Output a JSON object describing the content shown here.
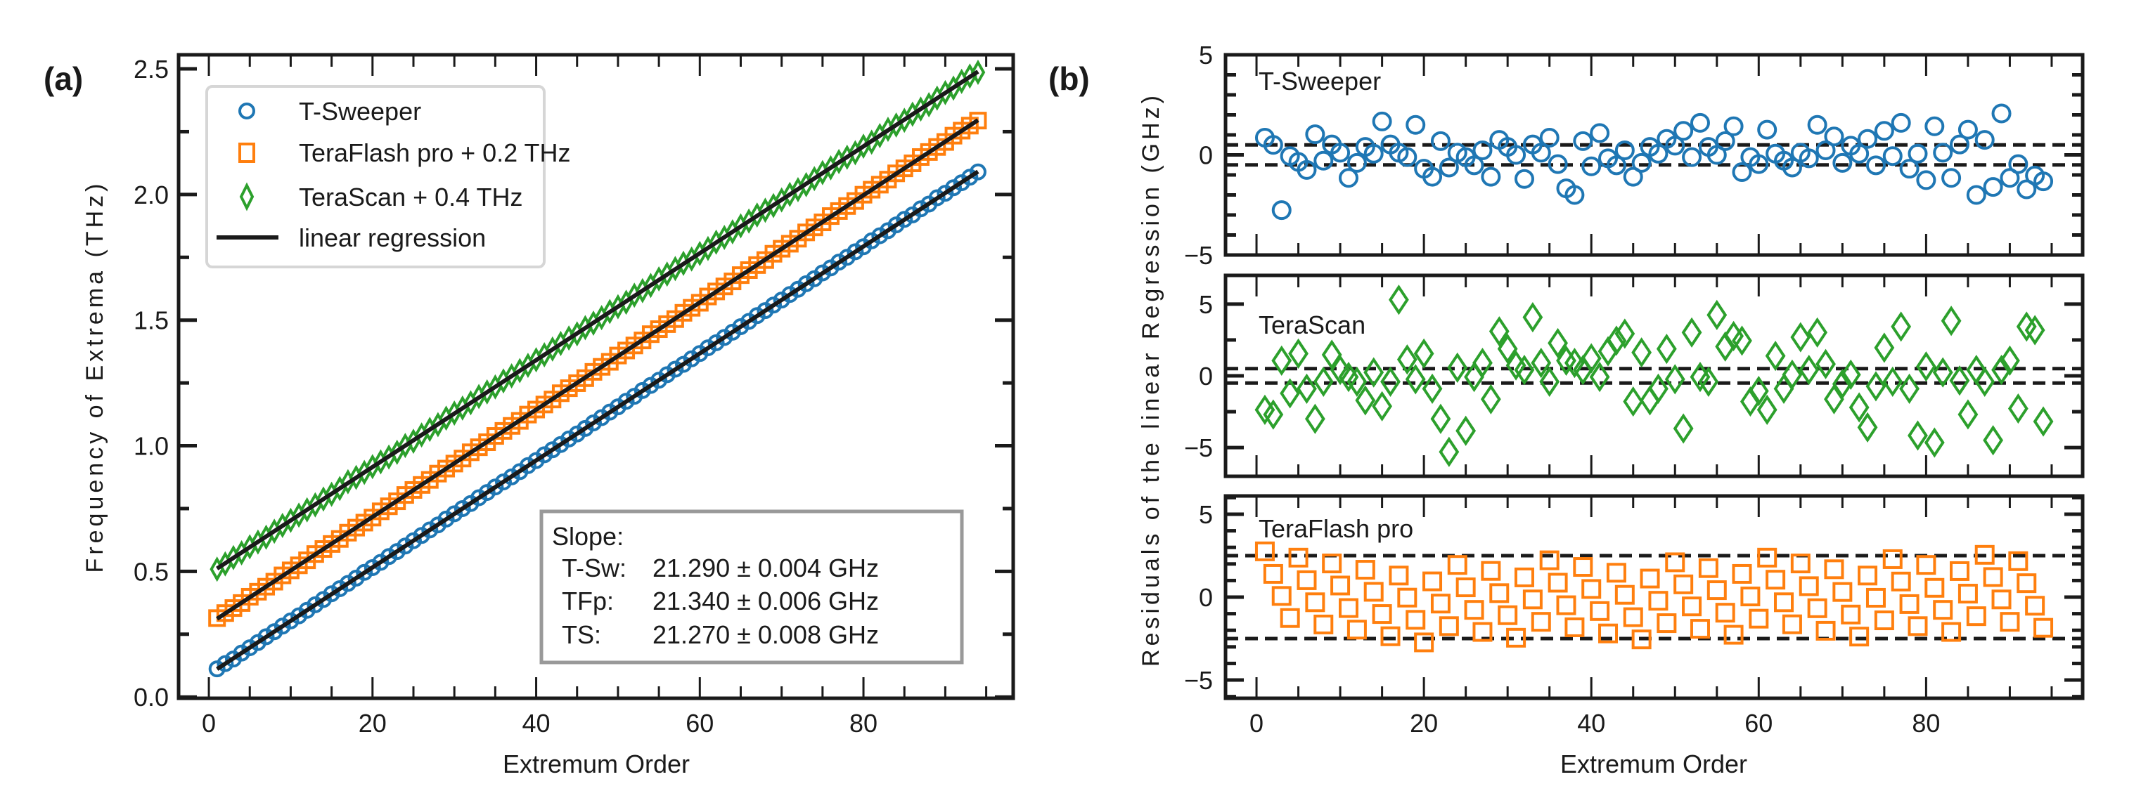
{
  "chart_data": [
    {
      "panel": "a",
      "type": "scatter",
      "panel_label": "(a)",
      "xlabel": "Extremum Order",
      "ylabel": "Frequency of Extrema (THz)",
      "xlim": [
        -3.7,
        98.3
      ],
      "ylim": [
        -0.005,
        2.556
      ],
      "xticks": [
        0,
        20,
        40,
        60,
        80
      ],
      "xtick_labels": [
        "0",
        "20",
        "40",
        "60",
        "80"
      ],
      "yticks": [
        0.0,
        0.5,
        1.0,
        1.5,
        2.0,
        2.5
      ],
      "ytick_labels": [
        "0.0",
        "0.5",
        "1.0",
        "1.5",
        "2.0",
        "2.5"
      ],
      "grid": false,
      "legend_position": "top-left",
      "legend": [
        {
          "label": "T-Sweeper",
          "marker": "circle",
          "color": "#1f77b4"
        },
        {
          "label": "TeraFlash pro + 0.2 THz",
          "marker": "square",
          "color": "#ff7f0e"
        },
        {
          "label": "TeraScan + 0.4 THz",
          "marker": "diamond",
          "color": "#2ca02c"
        },
        {
          "label": "linear regression",
          "marker": "line",
          "color": "#1a1a1a"
        }
      ],
      "series": [
        {
          "name": "T-Sweeper",
          "residual_source": "T-Sweeper",
          "color": "#1f77b4",
          "marker": "circle",
          "slope_ghz": 21.29,
          "intercept_thz": 0.09,
          "offset_thz": 0.0
        },
        {
          "name": "TeraFlash pro",
          "residual_source": "TeraFlash pro",
          "color": "#ff7f0e",
          "marker": "square",
          "slope_ghz": 21.34,
          "intercept_thz": 0.09,
          "offset_thz": 0.2
        },
        {
          "name": "TeraScan",
          "residual_source": "TeraScan",
          "color": "#2ca02c",
          "marker": "diamond",
          "slope_ghz": 21.27,
          "intercept_thz": 0.09,
          "offset_thz": 0.4
        }
      ],
      "annotation": {
        "title": "Slope:",
        "position": "bottom-right",
        "rows": [
          {
            "label": "T-Sw:",
            "value": "21.290 ± 0.004 GHz"
          },
          {
            "label": "TFp:",
            "value": "21.340 ± 0.006 GHz"
          },
          {
            "label": "TS:",
            "value": "21.270 ± 0.008 GHz"
          }
        ]
      }
    },
    {
      "panel": "b",
      "type": "scatter",
      "panel_label": "(b)",
      "xlabel": "Extremum Order",
      "ylabel": "Residuals of the linear Regression (GHz)",
      "x_start": 1,
      "x_end": 94,
      "xlim": [
        -3.7,
        98.7
      ],
      "xticks": [
        0,
        20,
        40,
        60,
        80
      ],
      "xtick_labels": [
        "0",
        "20",
        "40",
        "60",
        "80"
      ],
      "subplots": [
        {
          "title": "T-Sweeper",
          "color": "#1f77b4",
          "marker": "circle",
          "ylim": [
            -5,
            5
          ],
          "yticks": [
            -5,
            0,
            5
          ],
          "ytick_labels": [
            "−5",
            "0",
            "5"
          ],
          "yminor_step": 1,
          "dashed_lines": [
            0.5,
            -0.5
          ],
          "residuals": [
            0.86,
            0.5,
            -2.76,
            -0.06,
            -0.35,
            -0.75,
            1.03,
            -0.29,
            0.52,
            0.11,
            -1.15,
            -0.4,
            0.4,
            0.06,
            1.67,
            0.52,
            0.11,
            -0.11,
            1.5,
            -0.69,
            -1.09,
            0.69,
            -0.63,
            0.11,
            -0.11,
            -0.52,
            0.23,
            -1.09,
            0.75,
            0.4,
            0.0,
            -1.2,
            0.52,
            0.11,
            0.86,
            -0.46,
            -1.67,
            -2.0,
            0.69,
            -0.57,
            1.09,
            -0.17,
            -0.52,
            0.23,
            -1.09,
            -0.4,
            0.4,
            0.06,
            0.8,
            0.46,
            1.2,
            -0.11,
            1.6,
            0.4,
            0.0,
            0.69,
            1.43,
            -0.86,
            -0.11,
            -0.46,
            1.26,
            0.06,
            -0.29,
            -0.63,
            0.11,
            -0.17,
            1.5,
            0.23,
            0.92,
            -0.4,
            0.46,
            0.06,
            0.8,
            -0.52,
            1.2,
            -0.06,
            1.6,
            -0.69,
            0.06,
            -1.26,
            1.43,
            0.11,
            -1.15,
            0.52,
            1.26,
            -2.0,
            0.75,
            -1.6,
            2.07,
            -1.15,
            -0.46,
            -1.72,
            -1.03,
            -1.32
          ]
        },
        {
          "title": "TeraScan",
          "color": "#2ca02c",
          "marker": "diamond",
          "ylim": [
            -7,
            7
          ],
          "yticks": [
            -5,
            0,
            5
          ],
          "ytick_labels": [
            "−5",
            "0",
            "5"
          ],
          "yminor_step": 2.5,
          "dashed_lines": [
            0.5,
            -0.5
          ],
          "residuals": [
            -2.37,
            -2.7,
            1.06,
            -1.22,
            1.55,
            -0.9,
            -3.0,
            -0.41,
            1.47,
            0.41,
            -0.08,
            -0.41,
            -1.71,
            0.24,
            -2.12,
            -0.41,
            5.3,
            1.14,
            -0.24,
            1.55,
            -0.9,
            -3.0,
            -5.3,
            0.57,
            -3.83,
            -0.08,
            0.9,
            -1.63,
            3.1,
            1.88,
            0.73,
            0.41,
            4.08,
            0.9,
            -0.41,
            2.28,
            1.06,
            0.9,
            0.41,
            1.22,
            -0.08,
            1.71,
            2.45,
            2.94,
            -1.79,
            1.63,
            -1.71,
            -0.9,
            1.88,
            -0.24,
            -3.67,
            3.02,
            -0.08,
            -0.41,
            4.24,
            2.04,
            2.77,
            2.45,
            -1.79,
            -1.06,
            -2.37,
            1.39,
            -0.9,
            0.08,
            2.69,
            0.41,
            3.02,
            0.82,
            -1.63,
            -0.57,
            0.08,
            -2.2,
            -3.59,
            -0.73,
            1.96,
            -0.41,
            3.43,
            -0.9,
            -4.16,
            0.65,
            -4.65,
            0.24,
            3.83,
            -0.33,
            -2.69,
            0.41,
            -0.41,
            -4.49,
            0.41,
            1.06,
            -2.28,
            3.43,
            3.18,
            -3.18
          ]
        },
        {
          "title": "TeraFlash pro",
          "color": "#ff7f0e",
          "marker": "square",
          "ylim": [
            -6.1,
            6.1
          ],
          "yticks": [
            -5,
            0,
            5
          ],
          "ytick_labels": [
            "−5",
            "0",
            "5"
          ],
          "yminor_step": 1,
          "dashed_lines": [
            2.5,
            -2.5
          ],
          "residuals": [
            2.76,
            1.4,
            0.07,
            -1.26,
            2.38,
            1.02,
            -0.31,
            -1.65,
            2.03,
            0.7,
            -0.66,
            -1.96,
            1.65,
            0.32,
            -1.02,
            -2.36,
            1.3,
            -0.03,
            -1.37,
            -2.73,
            0.95,
            -0.39,
            -1.75,
            1.94,
            0.59,
            -0.77,
            -2.1,
            1.58,
            0.24,
            -1.09,
            -2.45,
            1.19,
            -0.14,
            -1.49,
            2.22,
            0.87,
            -0.49,
            -1.82,
            1.82,
            0.49,
            -0.84,
            -2.19,
            1.47,
            0.14,
            -1.21,
            -2.55,
            1.12,
            -0.22,
            -1.57,
            2.1,
            0.77,
            -0.56,
            -1.91,
            1.75,
            0.42,
            -0.94,
            -2.27,
            1.4,
            0.04,
            -1.3,
            2.38,
            1.05,
            -0.31,
            -1.64,
            2.03,
            0.66,
            -0.67,
            -2.03,
            1.68,
            0.31,
            -1.05,
            -2.38,
            1.3,
            -0.04,
            -1.4,
            2.29,
            0.94,
            -0.42,
            -1.75,
            1.94,
            0.56,
            -0.77,
            -2.1,
            1.57,
            0.21,
            -1.15,
            2.55,
            1.21,
            -0.14,
            -1.49,
            2.17,
            0.84,
            -0.52,
            -1.85
          ]
        }
      ]
    }
  ]
}
